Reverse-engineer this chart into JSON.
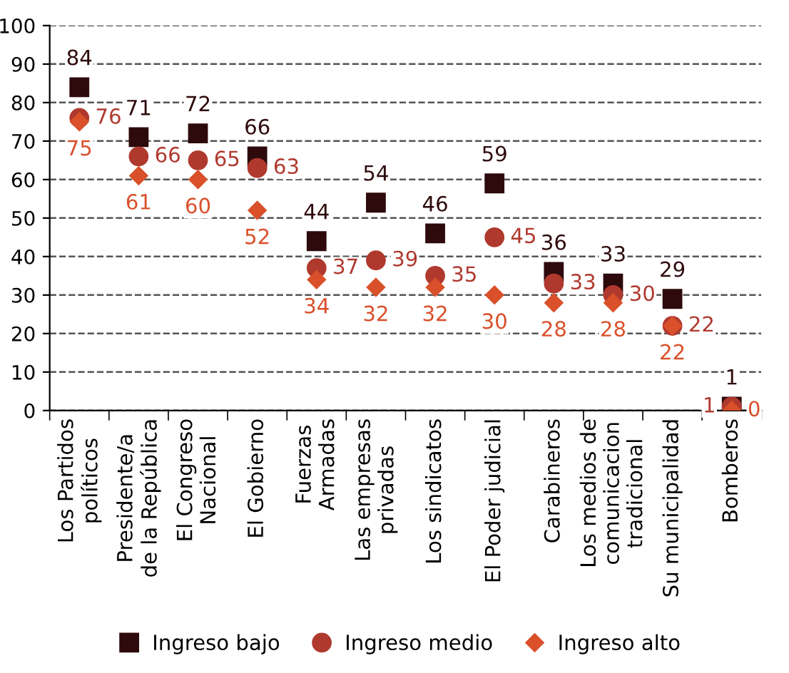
{
  "chart_data": {
    "type": "scatter",
    "categories": [
      "Los Partidos\npolíticos",
      "Presidente/a\nde la República",
      "El Congreso\nNacional",
      "El Gobierno",
      "Fuerzas\nArmadas",
      "Las empresas\nprivadas",
      "Los sindicatos",
      "El Poder judicial",
      "Carabineros",
      "Los medios de\ncomunicacion\ntradicional",
      "Su municipalidad",
      "Bomberos"
    ],
    "series": [
      {
        "name": "Ingreso bajo",
        "color": "#2e0a0c",
        "marker": "square",
        "values": [
          84,
          71,
          72,
          66,
          44,
          54,
          46,
          59,
          36,
          33,
          29,
          1
        ]
      },
      {
        "name": "Ingreso medio",
        "color": "#b0392e",
        "marker": "circle",
        "values": [
          76,
          66,
          65,
          63,
          37,
          39,
          35,
          45,
          33,
          30,
          22,
          1
        ]
      },
      {
        "name": "Ingreso alto",
        "color": "#d9502a",
        "marker": "diamond",
        "values": [
          75,
          61,
          60,
          52,
          34,
          32,
          32,
          30,
          28,
          28,
          22,
          0
        ]
      }
    ],
    "ylim": [
      0,
      100
    ],
    "yticks": [
      0,
      10,
      20,
      30,
      40,
      50,
      60,
      70,
      80,
      90,
      100
    ],
    "grid": "y",
    "line_style": "dashed",
    "legend": "bottom",
    "data_labels": true
  }
}
